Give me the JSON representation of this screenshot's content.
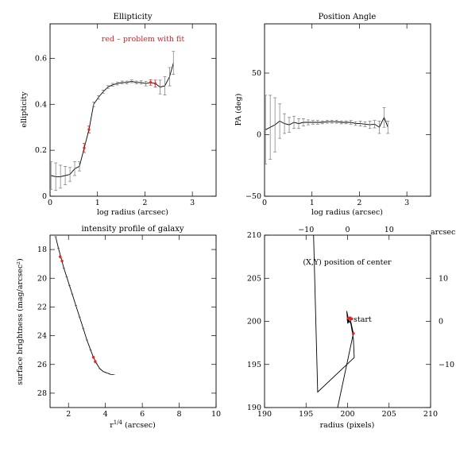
{
  "chart_data": [
    {
      "type": "line",
      "title": "Ellipticity",
      "annotation": "red – problem with fit",
      "xlabel": "log radius (arcsec)",
      "ylabel": "ellipticity",
      "xlim": [
        0,
        3.5
      ],
      "ylim": [
        0,
        0.75
      ],
      "xticks": [
        "0",
        "1",
        "2",
        "3"
      ],
      "yticks": [
        "0",
        "0.2",
        "0.4",
        "0.6"
      ],
      "x": [
        0.02,
        0.12,
        0.22,
        0.32,
        0.42,
        0.52,
        0.62,
        0.72,
        0.82,
        0.92,
        1.02,
        1.12,
        1.22,
        1.32,
        1.42,
        1.52,
        1.62,
        1.72,
        1.82,
        1.92,
        2.02,
        2.12,
        2.22,
        2.32,
        2.42,
        2.52,
        2.6
      ],
      "y": [
        0.09,
        0.085,
        0.085,
        0.09,
        0.095,
        0.12,
        0.13,
        0.21,
        0.29,
        0.4,
        0.43,
        0.455,
        0.475,
        0.485,
        0.49,
        0.495,
        0.495,
        0.5,
        0.495,
        0.495,
        0.49,
        0.495,
        0.49,
        0.475,
        0.48,
        0.52,
        0.58
      ],
      "err": [
        0.06,
        0.06,
        0.05,
        0.04,
        0.03,
        0.03,
        0.02,
        0.02,
        0.015,
        0.01,
        0.008,
        0.007,
        0.006,
        0.006,
        0.006,
        0.006,
        0.006,
        0.006,
        0.006,
        0.007,
        0.01,
        0.012,
        0.015,
        0.03,
        0.04,
        0.04,
        0.05
      ],
      "flagged": [
        0.72,
        0.82,
        2.12,
        2.22
      ]
    },
    {
      "type": "line",
      "title": "Position Angle",
      "xlabel": "log radius (arcsec)",
      "ylabel": "PA (deg)",
      "xlim": [
        0,
        3.5
      ],
      "ylim": [
        -50,
        90
      ],
      "xticks": [
        "0",
        "1",
        "2",
        "3"
      ],
      "yticks": [
        "−50",
        "0",
        "50"
      ],
      "x": [
        0.02,
        0.12,
        0.22,
        0.32,
        0.42,
        0.52,
        0.62,
        0.72,
        0.82,
        0.92,
        1.02,
        1.12,
        1.22,
        1.32,
        1.42,
        1.52,
        1.62,
        1.72,
        1.82,
        1.92,
        2.02,
        2.12,
        2.22,
        2.32,
        2.42,
        2.52,
        2.6
      ],
      "y": [
        4,
        6,
        8,
        11,
        9,
        8,
        10,
        9,
        10,
        10,
        10,
        10,
        10,
        10.5,
        10.5,
        10.5,
        10,
        10,
        10,
        9,
        9,
        8.5,
        8,
        8.5,
        6,
        14,
        6
      ],
      "err": [
        28,
        26,
        22,
        14,
        8,
        6,
        5,
        4,
        3,
        2,
        1.5,
        1.5,
        1.2,
        1.2,
        1.2,
        1.2,
        1.2,
        1.2,
        1.5,
        1.5,
        2,
        2,
        3,
        3,
        5,
        8,
        5
      ]
    },
    {
      "type": "line",
      "title": "intensity profile of galaxy",
      "xlabel": "r¹ᐟ⁴ (arcsec)",
      "ylabel": "surface brightness (mag/arcsec²)",
      "xlim": [
        1,
        10
      ],
      "ylim": [
        29,
        17
      ],
      "xticks": [
        "2",
        "4",
        "6",
        "8",
        "10"
      ],
      "yticks": [
        "18",
        "20",
        "22",
        "24",
        "26",
        "28"
      ],
      "x": [
        1.3,
        1.45,
        1.6,
        1.75,
        1.9,
        2.05,
        2.2,
        2.4,
        2.6,
        2.8,
        3.0,
        3.2,
        3.35,
        3.5,
        3.7,
        3.9,
        4.1,
        4.3,
        4.45
      ],
      "y": [
        17.1,
        17.9,
        18.6,
        19.3,
        19.9,
        20.5,
        21.1,
        21.9,
        22.7,
        23.5,
        24.3,
        25.0,
        25.5,
        25.9,
        26.3,
        26.5,
        26.6,
        26.7,
        26.7
      ],
      "flagged_points": [
        [
          1.55,
          18.5
        ],
        [
          1.65,
          18.8
        ],
        [
          3.35,
          25.5
        ],
        [
          3.45,
          25.8
        ]
      ]
    },
    {
      "type": "line",
      "title": "(X,Y) position of center",
      "xlabel": "radius (pixels)",
      "top_axis_label": "arcsec",
      "annotation": "start",
      "xlim": [
        190,
        210
      ],
      "ylim": [
        190,
        210
      ],
      "xticks": [
        "190",
        "195",
        "200",
        "205",
        "210"
      ],
      "yticks": [
        "190",
        "195",
        "200",
        "205",
        "210"
      ],
      "top_ticks": [
        "−10",
        "0",
        "10"
      ],
      "right_ticks": [
        "10",
        "0",
        "−10"
      ],
      "x": [
        195.9,
        196.4,
        200.8,
        200.7,
        200.4,
        200.1,
        199.9,
        200.0,
        200.3,
        200.7,
        198.8
      ],
      "y": [
        210,
        191.8,
        195.8,
        198.0,
        199.7,
        200.3,
        201.2,
        200.0,
        200.4,
        198.6,
        190
      ],
      "flagged_points": [
        [
          200.1,
          200.3
        ],
        [
          200.3,
          200.4
        ],
        [
          200.5,
          200.3
        ],
        [
          200.7,
          198.6
        ]
      ]
    }
  ]
}
